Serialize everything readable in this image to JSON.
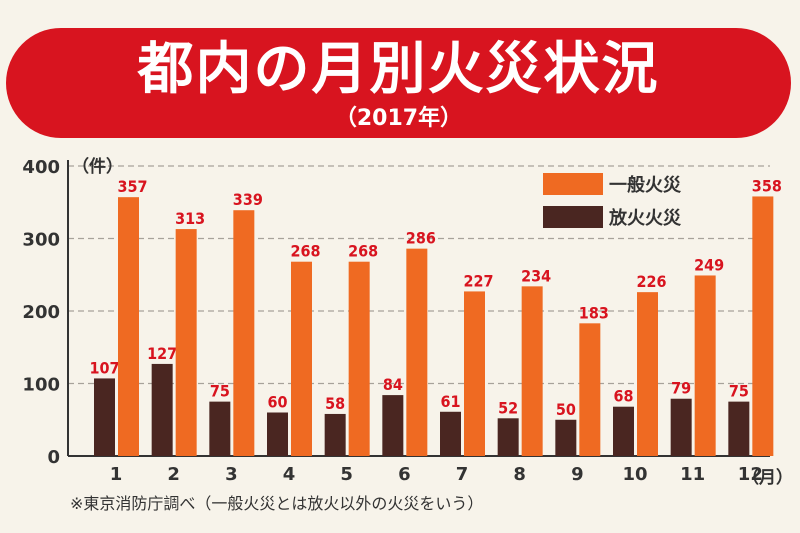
{
  "header": {
    "title": "都内の月別火災状況",
    "subtitle": "（2017年）"
  },
  "footnote": "※東京消防庁調べ（一般火災とは放火以外の火災をいう）",
  "colors": {
    "banner": "#d8141f",
    "general": "#ef6a22",
    "arson": "#4a2621",
    "label": "#d8141f",
    "background": "#f7f3ea"
  },
  "chart_data": {
    "type": "bar",
    "categories": [
      "1",
      "2",
      "3",
      "4",
      "5",
      "6",
      "7",
      "8",
      "9",
      "10",
      "11",
      "12"
    ],
    "series": [
      {
        "name": "放火火災",
        "values": [
          107,
          127,
          75,
          60,
          58,
          84,
          61,
          52,
          50,
          68,
          79,
          75
        ]
      },
      {
        "name": "一般火災",
        "values": [
          357,
          313,
          339,
          268,
          268,
          286,
          227,
          234,
          183,
          226,
          249,
          358
        ]
      }
    ],
    "ylabel": "（件）",
    "xlabel": "（月）",
    "ylim": [
      0,
      400
    ],
    "yticks": [
      0,
      100,
      200,
      300,
      400
    ],
    "grid": true,
    "legend_position": "top-right"
  }
}
